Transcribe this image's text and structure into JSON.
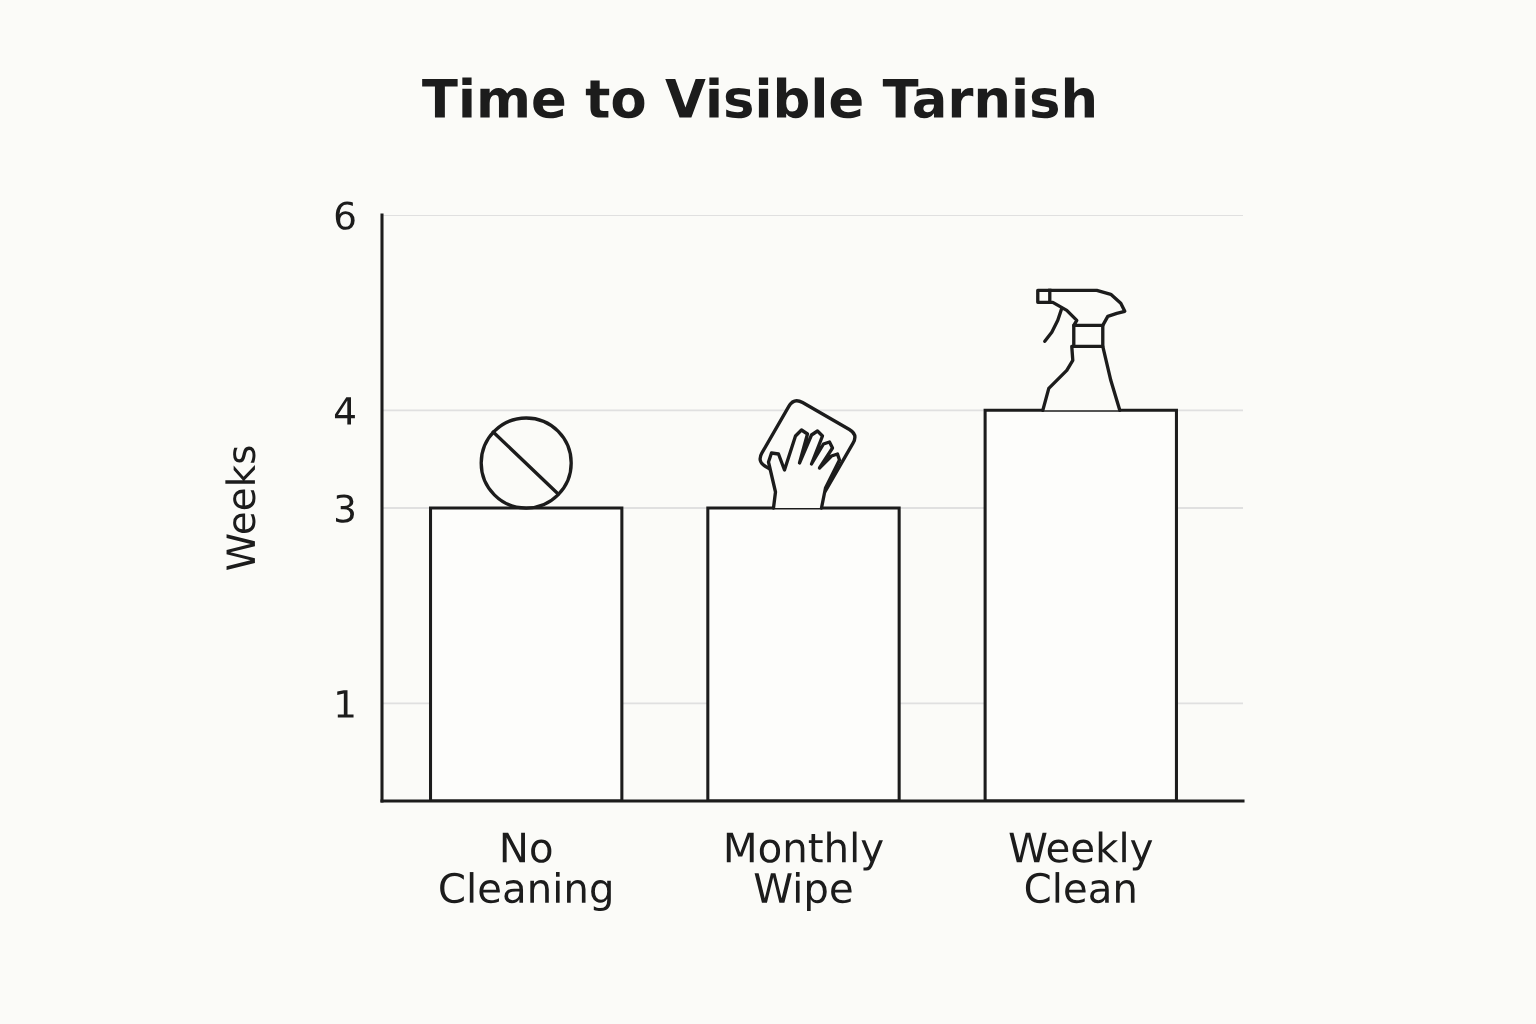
{
  "chart_data": {
    "type": "bar",
    "title": "Time to Visible Tarnish",
    "ylabel": "Weeks",
    "categories": [
      "No\nCleaning",
      "Monthly\nWipe",
      "Weekly\nClean"
    ],
    "values": [
      3,
      3,
      4
    ],
    "color": "#fdfdfb",
    "ylim": [
      0,
      6
    ],
    "yticks": [
      1,
      3,
      4,
      6
    ],
    "grid": "y"
  }
}
